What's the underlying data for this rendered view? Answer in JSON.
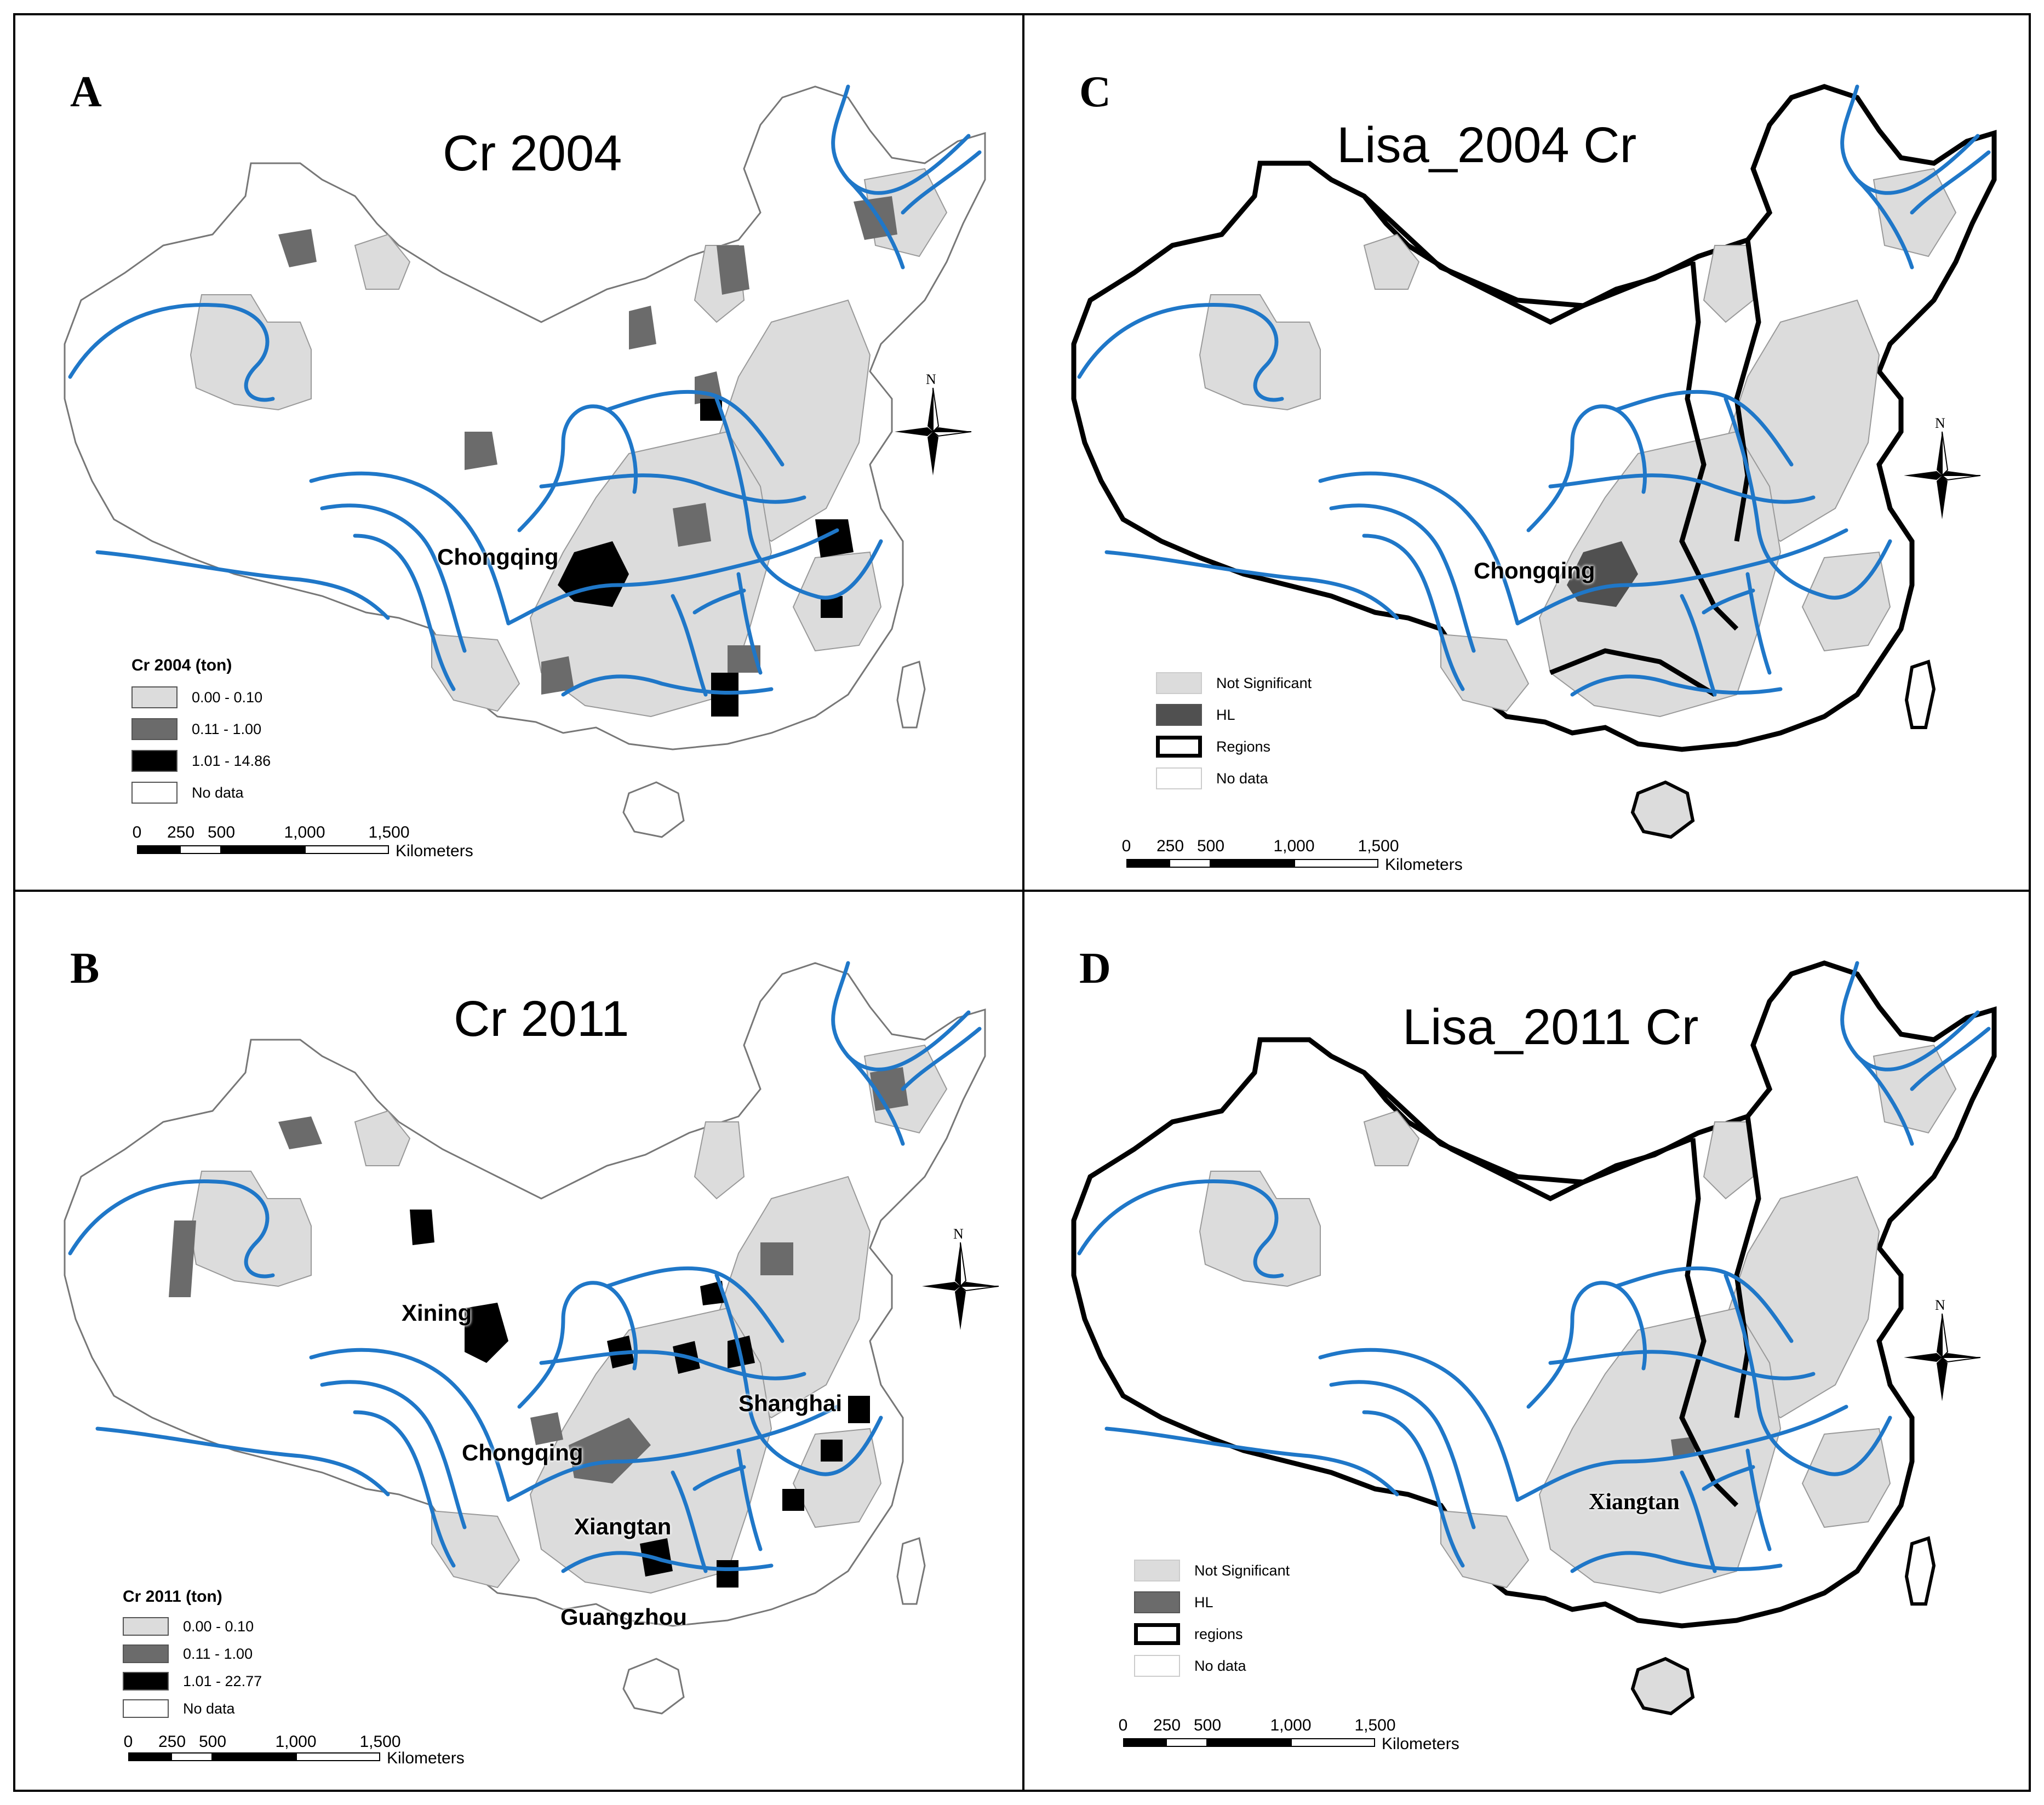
{
  "panels": {
    "a": {
      "letter": "A",
      "title": "Cr 2004",
      "legend": {
        "title": "Cr 2004 (ton)",
        "items": [
          {
            "label": "0.00 - 0.10",
            "color": "#dcdcdc"
          },
          {
            "label": "0.11 - 1.00",
            "color": "#6b6b6b"
          },
          {
            "label": "1.01 - 14.86",
            "color": "#000000"
          },
          {
            "label": "No data",
            "color": "#ffffff"
          }
        ]
      },
      "cities": {
        "chongqing": "Chongqing"
      },
      "scale": {
        "t0": "0",
        "t1": "250",
        "t2": "500",
        "t3": "1,000",
        "t4": "1,500",
        "unit": "Kilometers"
      },
      "north": "N"
    },
    "b": {
      "letter": "B",
      "title": "Cr 2011",
      "legend": {
        "title": "Cr 2011 (ton)",
        "items": [
          {
            "label": "0.00 - 0.10",
            "color": "#dcdcdc"
          },
          {
            "label": "0.11 - 1.00",
            "color": "#6b6b6b"
          },
          {
            "label": "1.01 - 22.77",
            "color": "#000000"
          },
          {
            "label": "No data",
            "color": "#ffffff"
          }
        ]
      },
      "cities": {
        "xining": "Xining",
        "chongqing": "Chongqing",
        "shanghai": "Shanghai",
        "xiangtan": "Xiangtan",
        "guangzhou": "Guangzhou"
      },
      "scale": {
        "t0": "0",
        "t1": "250",
        "t2": "500",
        "t3": "1,000",
        "t4": "1,500",
        "unit": "Kilometers"
      },
      "north": "N"
    },
    "c": {
      "letter": "C",
      "title": "Lisa_2004 Cr",
      "legend": {
        "items": [
          {
            "label": "Not Significant",
            "color": "#dcdcdc"
          },
          {
            "label": "HL",
            "color": "#505050"
          },
          {
            "label": "Regions",
            "color": "#ffffff"
          },
          {
            "label": "No data",
            "color": "#ffffff"
          }
        ]
      },
      "cities": {
        "chongqing": "Chongqing"
      },
      "scale": {
        "t0": "0",
        "t1": "250",
        "t2": "500",
        "t3": "1,000",
        "t4": "1,500",
        "unit": "Kilometers"
      },
      "north": "N"
    },
    "d": {
      "letter": "D",
      "title": "Lisa_2011 Cr",
      "legend": {
        "items": [
          {
            "label": "Not Significant",
            "color": "#dcdcdc"
          },
          {
            "label": "HL",
            "color": "#6b6b6b"
          },
          {
            "label": "regions",
            "color": "#ffffff"
          },
          {
            "label": "No data",
            "color": "#ffffff"
          }
        ]
      },
      "cities": {
        "xiangtan": "Xiangtan"
      },
      "scale": {
        "t0": "0",
        "t1": "250",
        "t2": "500",
        "t3": "1,000",
        "t4": "1,500",
        "unit": "Kilometers"
      },
      "north": "N"
    }
  },
  "colors": {
    "river": "#1f77c8",
    "light": "#dcdcdc",
    "mid": "#6b6b6b",
    "dark": "#000000",
    "outline": "#777777"
  }
}
